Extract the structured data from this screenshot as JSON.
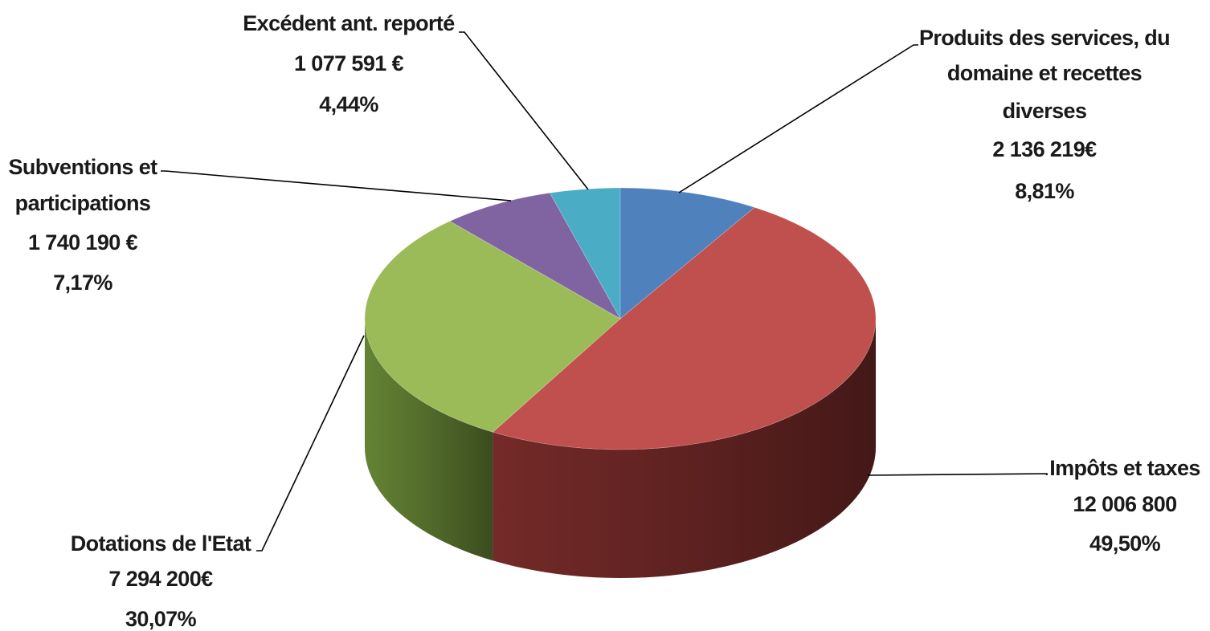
{
  "chart_data": {
    "type": "pie",
    "style": "3d",
    "title": "",
    "legend": "none",
    "slices": [
      {
        "name": "Produits des services, du domaine et recettes diverses",
        "label_lines": [
          "Produits des services, du",
          "domaine et recettes",
          "diverses"
        ],
        "value_text": "2 136 219€",
        "percent_text": "8,81%",
        "value": 2136219,
        "percent": 8.81,
        "color": "#4F81BD",
        "side_color": "#2c4b73"
      },
      {
        "name": "Impôts et taxes",
        "label_lines": [
          "Impôts et taxes"
        ],
        "value_text": "12 006 800",
        "percent_text": "49,50%",
        "value": 12006800,
        "percent": 49.5,
        "color": "#C0504D",
        "side_color": "#7a2c2a"
      },
      {
        "name": "Dotations de l'Etat",
        "label_lines": [
          "Dotations de l'Etat"
        ],
        "value_text": "7 294 200€",
        "percent_text": "30,07%",
        "value": 7294200,
        "percent": 30.07,
        "color": "#9BBB59",
        "side_color": "#6a8a37"
      },
      {
        "name": "Subventions et participations",
        "label_lines": [
          "Subventions et",
          "participations"
        ],
        "value_text": "1 740 190 €",
        "percent_text": "7,17%",
        "value": 1740190,
        "percent": 7.17,
        "color": "#8064A2",
        "side_color": "#55406f"
      },
      {
        "name": "Excédent ant. reporté",
        "label_lines": [
          "Excédent ant. reporté"
        ],
        "value_text": "1 077 591 €",
        "percent_text": "4,44%",
        "value": 1077591,
        "percent": 4.44,
        "color": "#4BACC6",
        "side_color": "#2d7588"
      }
    ]
  }
}
